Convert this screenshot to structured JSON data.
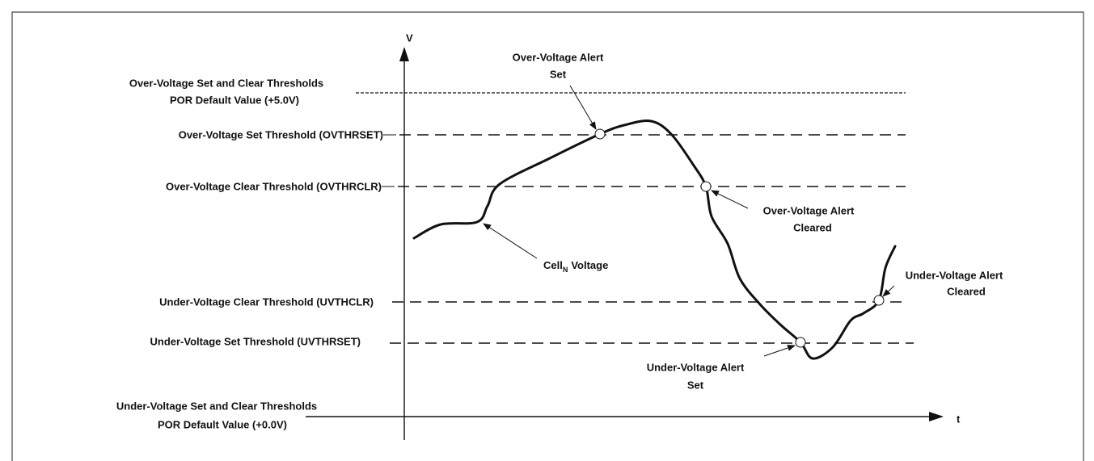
{
  "axes": {
    "y_label": "V",
    "x_label": "t"
  },
  "thresholds": {
    "ov_por": [
      "Over-Voltage Set and Clear Thresholds",
      "POR Default Value (+5.0V)"
    ],
    "ovthrset": "Over-Voltage Set Threshold (OVTHRSET)",
    "ovthrclr": "Over-Voltage Clear Threshold (OVTHRCLR)",
    "uvthclr": "Under-Voltage Clear Threshold (UVTHCLR)",
    "uvthrset": "Under-Voltage Set Threshold (UVTHRSET)",
    "uv_por": [
      "Under-Voltage Set and Clear Thresholds",
      "POR Default Value (+0.0V)"
    ]
  },
  "annotations": {
    "ov_set": [
      "Over-Voltage Alert",
      "Set"
    ],
    "ov_cleared": [
      "Over-Voltage Alert",
      "Cleared"
    ],
    "uv_cleared": [
      "Under-Voltage Alert",
      "Cleared"
    ],
    "uv_set": [
      "Under-Voltage Alert",
      "Set"
    ],
    "cell": {
      "label": "Cell",
      "subscript": "N",
      "suffix": "Voltage"
    }
  }
}
